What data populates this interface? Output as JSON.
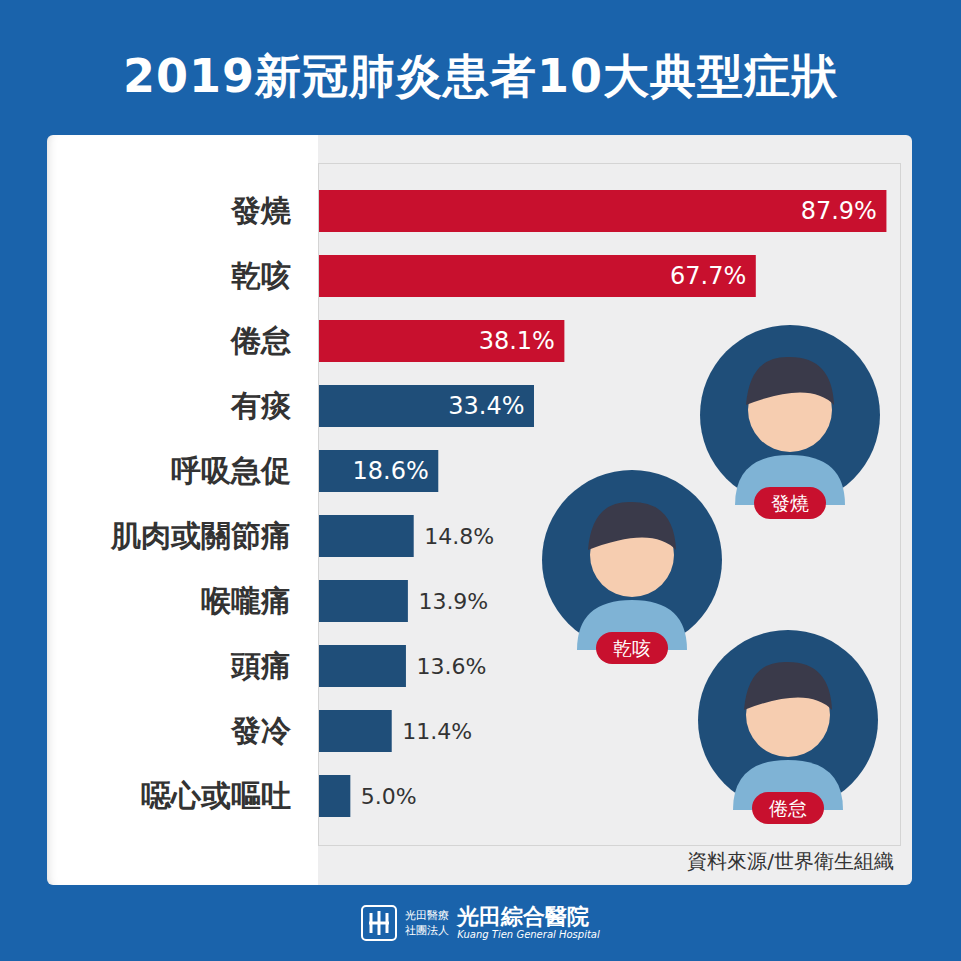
{
  "chart_data": {
    "type": "bar",
    "orientation": "horizontal",
    "title": "2019新冠肺炎患者10大典型症狀",
    "categories": [
      "發燒",
      "乾咳",
      "倦怠",
      "有痰",
      "呼吸急促",
      "肌肉或關節痛",
      "喉嚨痛",
      "頭痛",
      "發冷",
      "噁心或嘔吐"
    ],
    "values": [
      87.9,
      67.7,
      38.1,
      33.4,
      18.6,
      14.8,
      13.9,
      13.6,
      11.4,
      5.0
    ],
    "value_labels": [
      "87.9%",
      "67.7%",
      "38.1%",
      "33.4%",
      "18.6%",
      "14.8%",
      "13.9%",
      "13.6%",
      "11.4%",
      "5.0%"
    ],
    "colors": [
      "#c8102e",
      "#c8102e",
      "#c8102e",
      "#1f4e79",
      "#1f4e79",
      "#1f4e79",
      "#1f4e79",
      "#1f4e79",
      "#1f4e79",
      "#1f4e79"
    ],
    "xlim": [
      0,
      90
    ],
    "tick_labels": "y",
    "data_labels": true,
    "annotations": [
      "發燒",
      "乾咳",
      "倦怠"
    ],
    "source": "資料來源/世界衛生組織"
  },
  "footer": {
    "org_line1": "光田醫療",
    "org_line2": "社團法人",
    "name": "光田綜合醫院",
    "english_name": "Kuang Tien General Hospital"
  }
}
